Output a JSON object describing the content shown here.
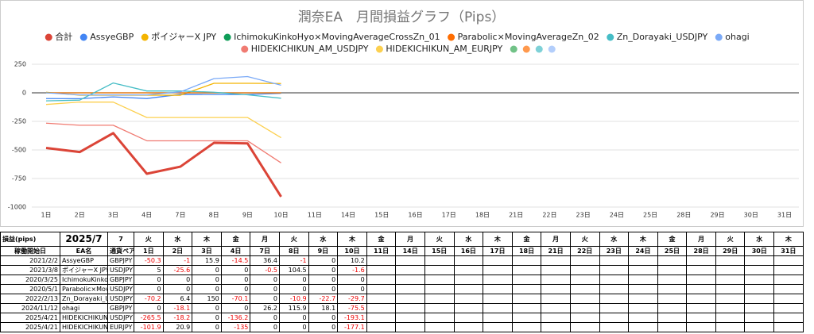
{
  "chart_data": {
    "type": "line",
    "title": "潤奈EA　月間損益グラフ（Pips）",
    "categories": [
      "1日",
      "2日",
      "3日",
      "4日",
      "7日",
      "8日",
      "9日",
      "10日",
      "11日",
      "14日",
      "15日",
      "16日",
      "17日",
      "18日",
      "21日",
      "22日",
      "23日",
      "24日",
      "25日",
      "28日",
      "29日",
      "30日",
      "31日"
    ],
    "ylim": [
      -1000,
      250
    ],
    "yticks": [
      -1000,
      -750,
      -500,
      -250,
      0,
      250
    ],
    "grid": true,
    "series": [
      {
        "name": "合計",
        "color": "#db4437",
        "values": [
          -482.9,
          -518.5,
          -352.6,
          -708.4,
          -646.3,
          -437.8,
          -442.4,
          -909.2,
          null,
          null,
          null,
          null,
          null,
          null,
          null,
          null,
          null,
          null,
          null,
          null,
          null,
          null,
          null
        ]
      },
      {
        "name": "AssyeGBP",
        "color": "#4285f4",
        "values": [
          -50.3,
          -51.3,
          -35.4,
          -49.9,
          -13.5,
          -14.5,
          -14.5,
          -4.3,
          null,
          null,
          null,
          null,
          null,
          null,
          null,
          null,
          null,
          null,
          null,
          null,
          null,
          null,
          null
        ]
      },
      {
        "name": "ポイジャーX JPY",
        "color": "#f4b400",
        "values": [
          5,
          -20.6,
          -20.6,
          -20.6,
          -21.1,
          83.4,
          83.4,
          81.8,
          null,
          null,
          null,
          null,
          null,
          null,
          null,
          null,
          null,
          null,
          null,
          null,
          null,
          null,
          null
        ]
      },
      {
        "name": "IchimokuKinkoHyo×MovingAverageCrossZn_01",
        "color": "#0f9d58",
        "values": [
          0,
          0,
          0,
          0,
          0,
          0,
          0,
          0,
          null,
          null,
          null,
          null,
          null,
          null,
          null,
          null,
          null,
          null,
          null,
          null,
          null,
          null,
          null
        ]
      },
      {
        "name": "Parabolic×MovingAverageZn_02",
        "color": "#ff6d01",
        "values": [
          0,
          0,
          0,
          0,
          0,
          0,
          0,
          0,
          null,
          null,
          null,
          null,
          null,
          null,
          null,
          null,
          null,
          null,
          null,
          null,
          null,
          null,
          null
        ]
      },
      {
        "name": "Zn_Dorayaki_USDJPY",
        "color": "#46bdc6",
        "values": [
          -70.2,
          -63.8,
          86.2,
          16.1,
          16.1,
          5.2,
          -17.5,
          -47.2,
          null,
          null,
          null,
          null,
          null,
          null,
          null,
          null,
          null,
          null,
          null,
          null,
          null,
          null,
          null
        ]
      },
      {
        "name": "ohagi",
        "color": "#7baaf7",
        "values": [
          0,
          -18.1,
          -18.1,
          -18.1,
          8.1,
          124,
          142.1,
          66.6,
          null,
          null,
          null,
          null,
          null,
          null,
          null,
          null,
          null,
          null,
          null,
          null,
          null,
          null,
          null
        ]
      },
      {
        "name": "HIDEKICHIKUN_AM_USDJPY",
        "color": "#f07b72",
        "values": [
          -265.5,
          -283.7,
          -283.7,
          -419.9,
          -419.9,
          -419.9,
          -419.9,
          -613,
          null,
          null,
          null,
          null,
          null,
          null,
          null,
          null,
          null,
          null,
          null,
          null,
          null,
          null,
          null
        ]
      },
      {
        "name": "HIDEKICHIKUN_AM_EURJPY",
        "color": "#fcd04f",
        "values": [
          -101.9,
          -81,
          -81,
          -216,
          -216,
          -216,
          -216,
          -393.1,
          null,
          null,
          null,
          null,
          null,
          null,
          null,
          null,
          null,
          null,
          null,
          null,
          null,
          null,
          null
        ]
      }
    ]
  },
  "table": {
    "label": "損益(pips)",
    "month": "2025/7",
    "selector": "7",
    "weekdays": [
      "火",
      "水",
      "木",
      "金",
      "月",
      "火",
      "水",
      "木",
      "金",
      "月",
      "火",
      "水",
      "木",
      "金",
      "月",
      "火",
      "水",
      "木",
      "金",
      "月",
      "火",
      "水",
      "木"
    ],
    "columns": [
      "稼働開始日",
      "EA名",
      "通貨ペア"
    ],
    "rows": [
      {
        "start": "2021/2/2",
        "pair": "GBPJPY",
        "values": [
          -50.3,
          -1,
          15.9,
          -14.5,
          36.4,
          -1,
          0,
          10.2
        ]
      },
      {
        "start": "2021/3/8",
        "pair": "USDJPY",
        "values": [
          5,
          -25.6,
          0,
          0,
          -0.5,
          104.5,
          0,
          -1.6
        ]
      },
      {
        "start": "2020/3/25",
        "pair": "GBPJPY",
        "values": [
          0,
          0,
          0,
          0,
          0,
          0,
          0,
          0
        ]
      },
      {
        "start": "2020/5/1",
        "pair": "USDJPY",
        "values": [
          0,
          0,
          0,
          0,
          0,
          0,
          0,
          0
        ]
      },
      {
        "start": "2022/2/13",
        "pair": "USDJPY",
        "values": [
          -70.2,
          6.4,
          150,
          -70.1,
          0,
          -10.9,
          -22.7,
          -29.7
        ]
      },
      {
        "start": "2024/11/12",
        "pair": "GBPJPY",
        "values": [
          0,
          -18.1,
          0,
          0,
          26.2,
          115.9,
          18.1,
          -75.5
        ]
      },
      {
        "start": "2025/4/21",
        "pair": "USDJPY",
        "values": [
          -265.5,
          -18.2,
          0,
          -136.2,
          0,
          0,
          0,
          -193.1
        ]
      },
      {
        "start": "2025/4/21",
        "pair": "EURJPY",
        "values": [
          -101.9,
          20.9,
          0,
          -135,
          0,
          0,
          0,
          -177.1
        ]
      }
    ]
  }
}
